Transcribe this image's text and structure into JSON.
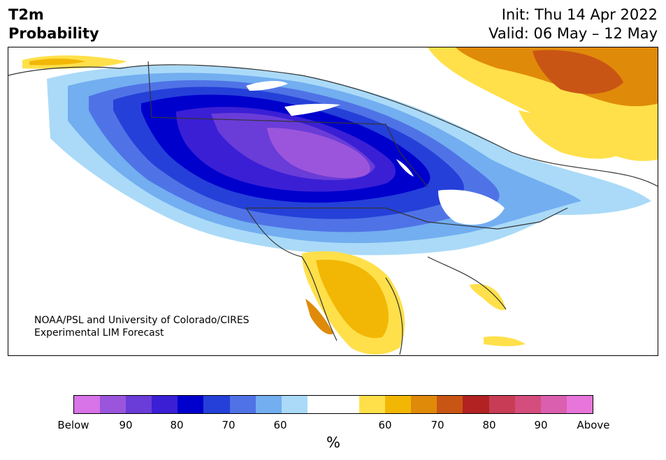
{
  "header": {
    "variable": "T2m",
    "product": "Probability",
    "init": "Init: Thu 14 Apr 2022",
    "valid": "Valid: 06 May – 12 May"
  },
  "credit": {
    "line1": "NOAA/PSL and University of Colorado/CIRES",
    "line2": "Experimental LIM Forecast"
  },
  "colorbar": {
    "unit": "%",
    "below_colors": [
      "#d873e8",
      "#9b55dc",
      "#6a3cd8",
      "#3a1fd5",
      "#0000cd",
      "#2540d8",
      "#4f73e6",
      "#72aef0",
      "#aadaf8"
    ],
    "neutral_color": "#ffffff",
    "above_colors": [
      "#ffe04a",
      "#f2b705",
      "#e08a0a",
      "#c95515",
      "#b22222",
      "#c93c55",
      "#d44d7c",
      "#da5fae",
      "#e775da"
    ],
    "tick_labels": [
      "Below",
      "90",
      "80",
      "70",
      "60",
      "60",
      "70",
      "80",
      "90",
      "Above"
    ]
  },
  "map": {
    "cold_anomaly_region": "north-central US and Canadian prairies",
    "warm_anomaly_regions": [
      "Southwest US and northern Mexico",
      "Florida",
      "Greenland",
      "northern Alaska coast"
    ]
  }
}
